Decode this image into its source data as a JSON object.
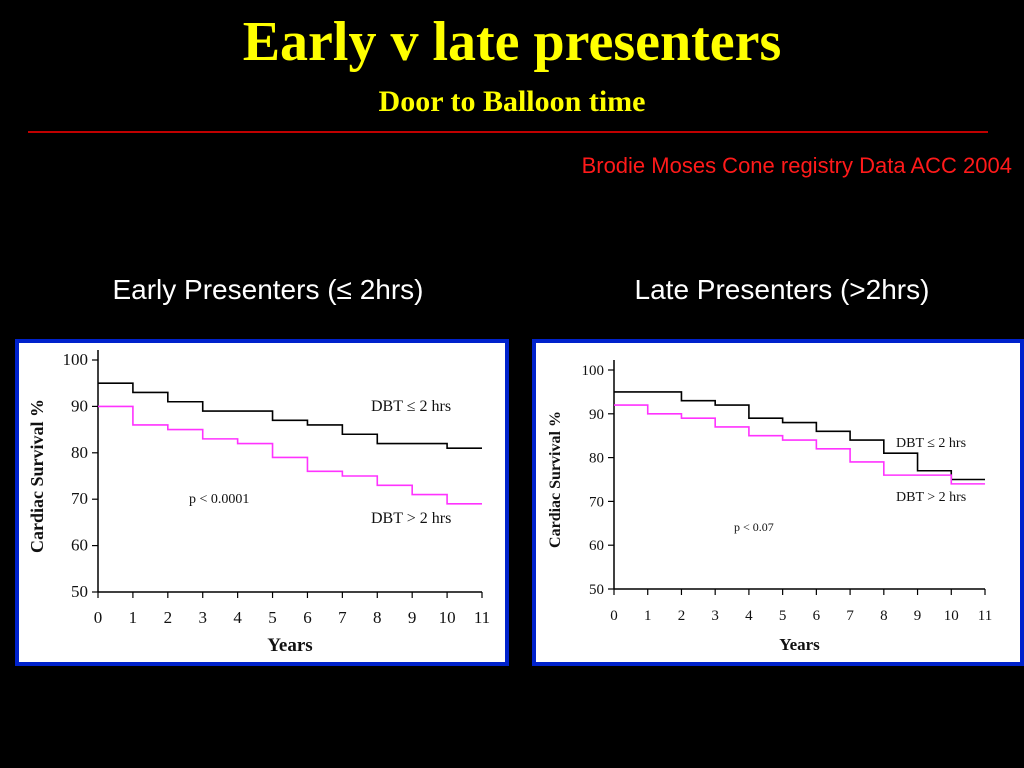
{
  "slide": {
    "title": "Early v late presenters",
    "subtitle": "Door to Balloon time",
    "source": "Brodie Moses Cone registry Data ACC 2004"
  },
  "colors": {
    "background": "#000000",
    "title": "#ffff00",
    "rule": "#c00000",
    "source": "#ff1a1a",
    "frame": "#0022cc",
    "series_black": "#000000",
    "series_magenta": "#ff33ff"
  },
  "chart_data": [
    {
      "type": "line",
      "heading": "Early Presenters (≤ 2hrs)",
      "xlabel": "Years",
      "ylabel": "Cardiac Survival %",
      "xlim": [
        0,
        11
      ],
      "ylim": [
        50,
        100
      ],
      "xticks": [
        0,
        1,
        2,
        3,
        4,
        5,
        6,
        7,
        8,
        9,
        10,
        11
      ],
      "yticks": [
        50,
        60,
        70,
        80,
        90,
        100
      ],
      "grid": false,
      "annotation": "p < 0.0001",
      "series": [
        {
          "name": "DBT ≤ 2 hrs",
          "color": "#000000",
          "x": [
            0,
            1,
            2,
            3,
            4,
            5,
            6,
            7,
            8,
            9,
            10,
            11
          ],
          "y": [
            95,
            93,
            91,
            89,
            89,
            87,
            86,
            84,
            82,
            82,
            81,
            81
          ]
        },
        {
          "name": "DBT > 2 hrs",
          "color": "#ff33ff",
          "x": [
            0,
            1,
            2,
            3,
            4,
            5,
            6,
            7,
            8,
            9,
            10,
            11
          ],
          "y": [
            90,
            86,
            85,
            83,
            82,
            79,
            76,
            75,
            73,
            71,
            69,
            69
          ]
        }
      ]
    },
    {
      "type": "line",
      "heading": "Late Presenters (>2hrs)",
      "xlabel": "Years",
      "ylabel": "Cardiac Survival %",
      "xlim": [
        0,
        11
      ],
      "ylim": [
        50,
        100
      ],
      "xticks": [
        0,
        1,
        2,
        3,
        4,
        5,
        6,
        7,
        8,
        9,
        10,
        11
      ],
      "yticks": [
        50,
        60,
        70,
        80,
        90,
        100
      ],
      "grid": false,
      "annotation": "p < 0.07",
      "series": [
        {
          "name": "DBT ≤ 2 hrs",
          "color": "#000000",
          "x": [
            0,
            1,
            2,
            3,
            4,
            5,
            6,
            7,
            8,
            9,
            10,
            11
          ],
          "y": [
            95,
            95,
            93,
            92,
            89,
            88,
            86,
            84,
            81,
            77,
            75,
            75
          ]
        },
        {
          "name": "DBT > 2 hrs",
          "color": "#ff33ff",
          "x": [
            0,
            1,
            2,
            3,
            4,
            5,
            6,
            7,
            8,
            9,
            10,
            11
          ],
          "y": [
            92,
            90,
            89,
            87,
            85,
            84,
            82,
            79,
            76,
            76,
            74,
            74
          ]
        }
      ]
    }
  ]
}
